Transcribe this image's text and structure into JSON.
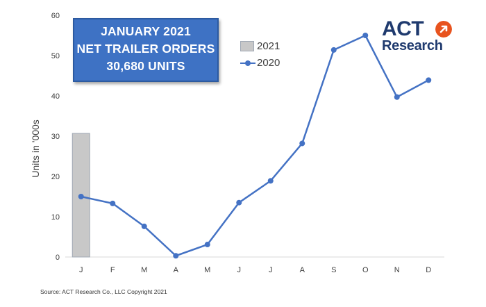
{
  "callout": {
    "line1": "JANUARY 2021",
    "line2": "NET TRAILER ORDERS",
    "line3": "30,680 UNITS"
  },
  "logo": {
    "text_top": "ACT",
    "text_bottom": "Research",
    "accent_color": "#e8531e",
    "brand_color": "#1f3a6e",
    "icon": "arrow-up-right-icon"
  },
  "source_note": "Source: ACT Research Co., LLC Copyright 2021",
  "chart_data": {
    "type": "bar",
    "categories": [
      "J",
      "F",
      "M",
      "A",
      "M",
      "J",
      "J",
      "A",
      "S",
      "O",
      "N",
      "D"
    ],
    "ylabel": "Units in '000s",
    "xlabel": "",
    "ylim": [
      0,
      60
    ],
    "yticks": [
      0,
      10,
      20,
      30,
      40,
      50,
      60
    ],
    "grid": false,
    "legend_position": "top-center",
    "series": [
      {
        "name": "2021",
        "type": "bar",
        "color": "#c8c8c8",
        "values": [
          30.68,
          null,
          null,
          null,
          null,
          null,
          null,
          null,
          null,
          null,
          null,
          null
        ]
      },
      {
        "name": "2020",
        "type": "line",
        "color": "#4472c4",
        "values": [
          15.0,
          13.3,
          7.6,
          0.3,
          3.1,
          13.5,
          18.9,
          28.2,
          51.4,
          55.0,
          39.7,
          43.9
        ]
      }
    ]
  }
}
